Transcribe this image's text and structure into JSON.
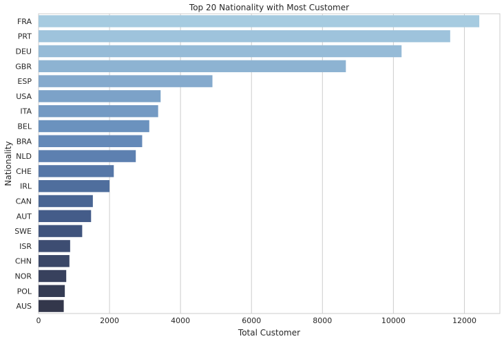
{
  "chart_data": {
    "type": "bar",
    "orientation": "horizontal",
    "title": "Top 20 Nationality with Most Customer",
    "xlabel": "Total Customer",
    "ylabel": "Nationality",
    "xlim": [
      0,
      13000
    ],
    "xticks": [
      0,
      2000,
      4000,
      6000,
      8000,
      10000,
      12000
    ],
    "grid": true,
    "categories": [
      "FRA",
      "PRT",
      "DEU",
      "GBR",
      "ESP",
      "USA",
      "ITA",
      "BEL",
      "BRA",
      "NLD",
      "CHE",
      "IRL",
      "CAN",
      "AUT",
      "SWE",
      "ISR",
      "CHN",
      "NOR",
      "POL",
      "AUS"
    ],
    "values": [
      12420,
      11600,
      10230,
      8660,
      4900,
      3440,
      3370,
      3120,
      2920,
      2740,
      2120,
      2000,
      1530,
      1480,
      1230,
      890,
      870,
      780,
      740,
      710
    ],
    "colors": [
      "#a6cbe0",
      "#9ec3dc",
      "#96bbd7",
      "#8db3d2",
      "#85aacd",
      "#7ca2c8",
      "#749ac3",
      "#6b92be",
      "#6489b8",
      "#5d80b0",
      "#5677a7",
      "#4f6e9d",
      "#496593",
      "#445c89",
      "#40547d",
      "#3d4d72",
      "#3a4767",
      "#38415d",
      "#353c54",
      "#33374b"
    ]
  }
}
